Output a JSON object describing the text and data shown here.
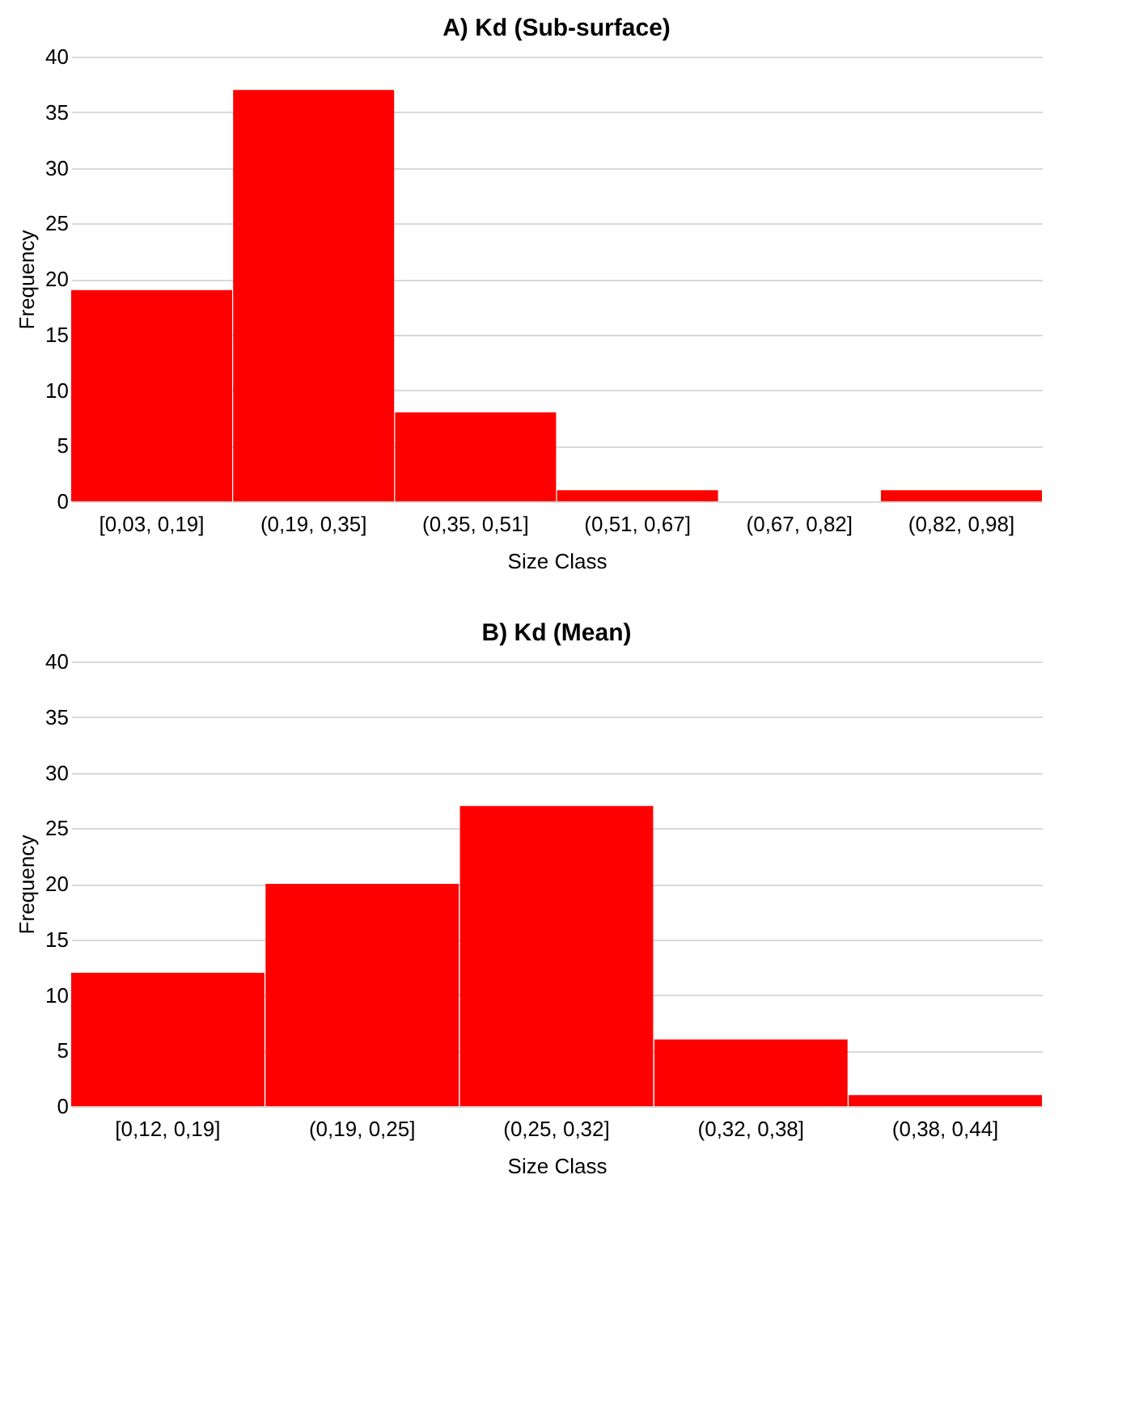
{
  "chart_data": [
    {
      "type": "bar",
      "title": "A) Kd (Sub-surface)",
      "categories": [
        "[0,03, 0,19]",
        "(0,19, 0,35]",
        "(0,35, 0,51]",
        "(0,51, 0,67]",
        "(0,67, 0,82]",
        "(0,82, 0,98]"
      ],
      "values": [
        19,
        37,
        8,
        1,
        0,
        1
      ],
      "color": "#ff0000",
      "xlabel": "Size Class",
      "ylabel": "Frequency",
      "ylim": [
        0,
        40
      ],
      "yticks": [
        0,
        5,
        10,
        15,
        20,
        25,
        30,
        35,
        40
      ],
      "grid": "y"
    },
    {
      "type": "bar",
      "title": "B) Kd (Mean)",
      "categories": [
        "[0,12, 0,19]",
        "(0,19, 0,25]",
        "(0,25, 0,32]",
        "(0,32, 0,38]",
        "(0,38, 0,44]"
      ],
      "values": [
        12,
        20,
        27,
        6,
        1
      ],
      "color": "#ff0000",
      "xlabel": "Size Class",
      "ylabel": "Frequency",
      "ylim": [
        0,
        40
      ],
      "yticks": [
        0,
        5,
        10,
        15,
        20,
        25,
        30,
        35,
        40
      ],
      "grid": "y"
    }
  ]
}
